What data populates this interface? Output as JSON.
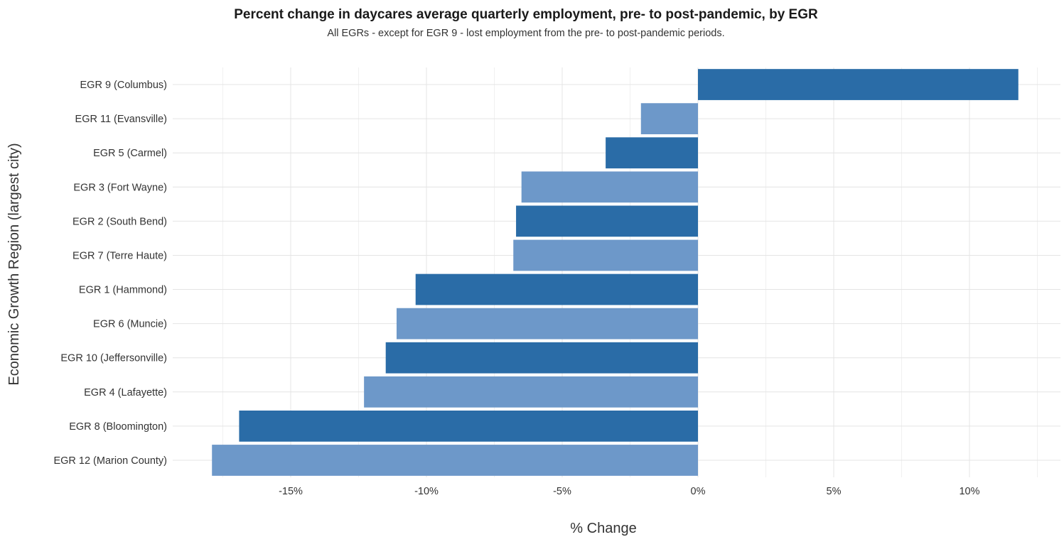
{
  "chart_data": {
    "type": "bar",
    "orientation": "horizontal",
    "title": "Percent change in daycares average quarterly employment, pre- to post-pandemic, by EGR",
    "subtitle": "All EGRs - except for EGR 9 - lost employment from the pre- to post-pandemic periods.",
    "xlabel": "% Change",
    "ylabel": "Economic Growth Region (largest city)",
    "xlim": [
      -18,
      13
    ],
    "x_ticks": [
      -15,
      -10,
      -5,
      0,
      5,
      10
    ],
    "x_tick_labels": [
      "-15%",
      "-10%",
      "-5%",
      "0%",
      "5%",
      "10%"
    ],
    "grid": true,
    "colors": {
      "dark": "#2a6ca7",
      "light": "#6d98c9"
    },
    "categories": [
      "EGR 9 (Columbus)",
      "EGR 11 (Evansville)",
      "EGR 5 (Carmel)",
      "EGR 3 (Fort Wayne)",
      "EGR 2 (South Bend)",
      "EGR 7 (Terre Haute)",
      "EGR 1 (Hammond)",
      "EGR 6 (Muncie)",
      "EGR 10 (Jeffersonville)",
      "EGR 4 (Lafayette)",
      "EGR 8 (Bloomington)",
      "EGR 12 (Marion County)"
    ],
    "values": [
      11.8,
      -2.1,
      -3.4,
      -6.5,
      -6.7,
      -6.8,
      -10.4,
      -11.1,
      -11.5,
      -12.3,
      -16.9,
      -17.9
    ],
    "bar_shades": [
      "dark",
      "light",
      "dark",
      "light",
      "dark",
      "light",
      "dark",
      "light",
      "dark",
      "light",
      "dark",
      "light"
    ]
  }
}
